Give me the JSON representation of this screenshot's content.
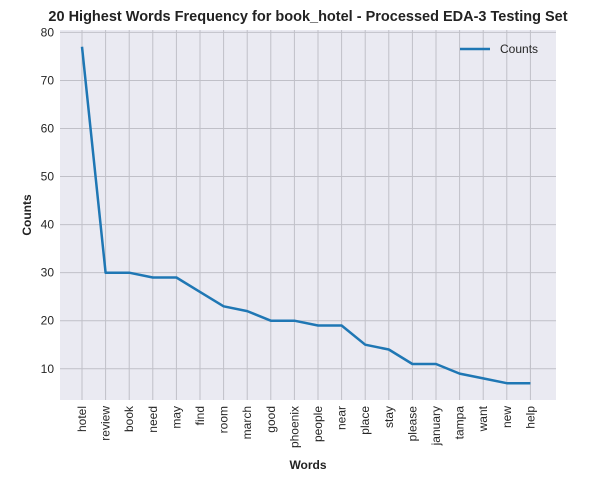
{
  "chart_data": {
    "type": "line",
    "title": "20 Highest Words Frequency for book_hotel - Processed EDA-3 Testing Set",
    "xlabel": "Words",
    "ylabel": "Counts",
    "categories": [
      "hotel",
      "review",
      "book",
      "need",
      "may",
      "find",
      "room",
      "march",
      "good",
      "phoenix",
      "people",
      "near",
      "place",
      "stay",
      "please",
      "january",
      "tampa",
      "want",
      "new",
      "help"
    ],
    "series": [
      {
        "name": "Counts",
        "values": [
          77,
          30,
          30,
          29,
          29,
          26,
          23,
          22,
          20,
          20,
          19,
          19,
          15,
          14,
          11,
          11,
          9,
          8,
          7,
          7
        ],
        "color": "#1f77b4"
      }
    ],
    "ylim": [
      3.5,
      80.5
    ],
    "yticks": [
      10,
      20,
      30,
      40,
      50,
      60,
      70,
      80
    ],
    "grid": true,
    "legend": "top-right"
  }
}
